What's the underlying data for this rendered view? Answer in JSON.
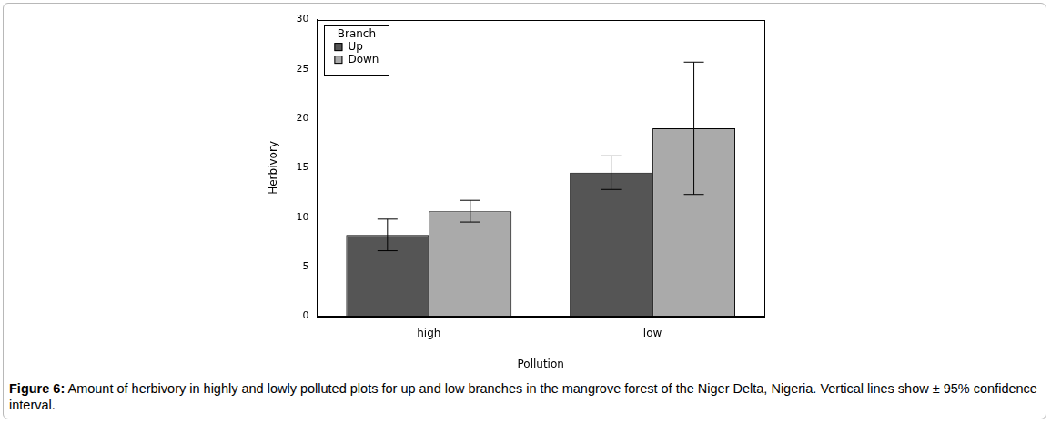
{
  "chart_data": {
    "type": "bar",
    "x_label": "Pollution",
    "y_label": "Herbivory",
    "categories": [
      "high",
      "low"
    ],
    "series": [
      {
        "name": "Up",
        "color": "#555555",
        "values": [
          8.2,
          14.5
        ],
        "ci_low": [
          6.6,
          12.8
        ],
        "ci_high": [
          9.8,
          16.2
        ]
      },
      {
        "name": "Down",
        "color": "#aaaaaa",
        "values": [
          10.6,
          19.0
        ],
        "ci_low": [
          9.5,
          12.3
        ],
        "ci_high": [
          11.7,
          25.7
        ]
      }
    ],
    "legend_title": "Branch",
    "legend": "top-left",
    "ylim": [
      0,
      30
    ],
    "yticks": [
      0,
      5,
      10,
      15,
      20,
      25,
      30
    ],
    "grid": false
  },
  "caption": {
    "label": "Figure 6:",
    "text": "Amount of herbivory in highly and lowly polluted plots for up and low branches in the mangrove forest of the Niger Delta, Nigeria. Vertical lines show ± 95% confidence interval."
  }
}
